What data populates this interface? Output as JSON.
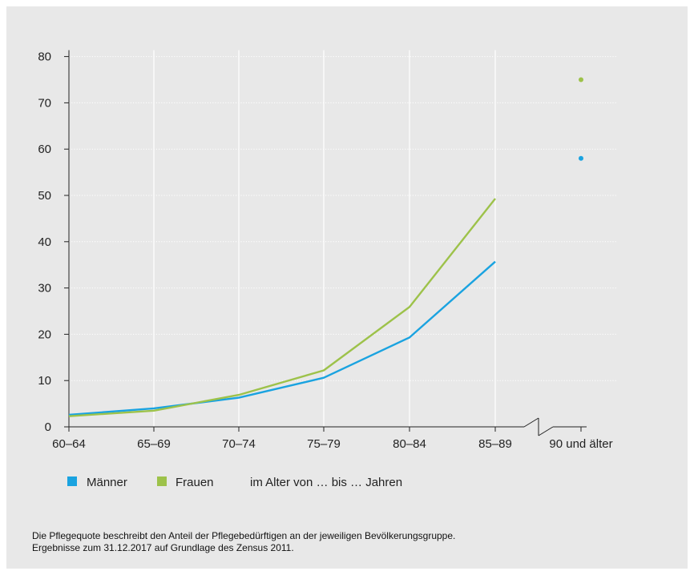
{
  "chart_data": {
    "type": "line",
    "categories": [
      "60–64",
      "65–69",
      "70–74",
      "75–79",
      "80–84",
      "85–89",
      "90 und älter"
    ],
    "series": [
      {
        "name": "Männer",
        "color": "#1aa3e0",
        "values": [
          2.6,
          4.0,
          6.3,
          10.6,
          19.3,
          35.7,
          58
        ]
      },
      {
        "name": "Frauen",
        "color": "#9dc24a",
        "values": [
          2.3,
          3.5,
          6.9,
          12.2,
          25.9,
          49.3,
          75
        ]
      }
    ],
    "ylim": [
      0,
      80
    ],
    "yticks": [
      "0",
      "10",
      "20",
      "30",
      "40",
      "50",
      "60",
      "70",
      "80"
    ],
    "axis_break": "between 85–89 and 90 und älter",
    "grid": true,
    "legend_placement": "bottom-left",
    "legend_note": "im Alter von … bis … Jahren"
  },
  "footnote": {
    "line1": "Die Pflegequote beschreibt den Anteil der Pflegebedürftigen an der jeweiligen Bevölkerungsgruppe.",
    "line2": "Ergebnisse zum 31.12.2017 auf Grundlage des Zensus 2011."
  }
}
